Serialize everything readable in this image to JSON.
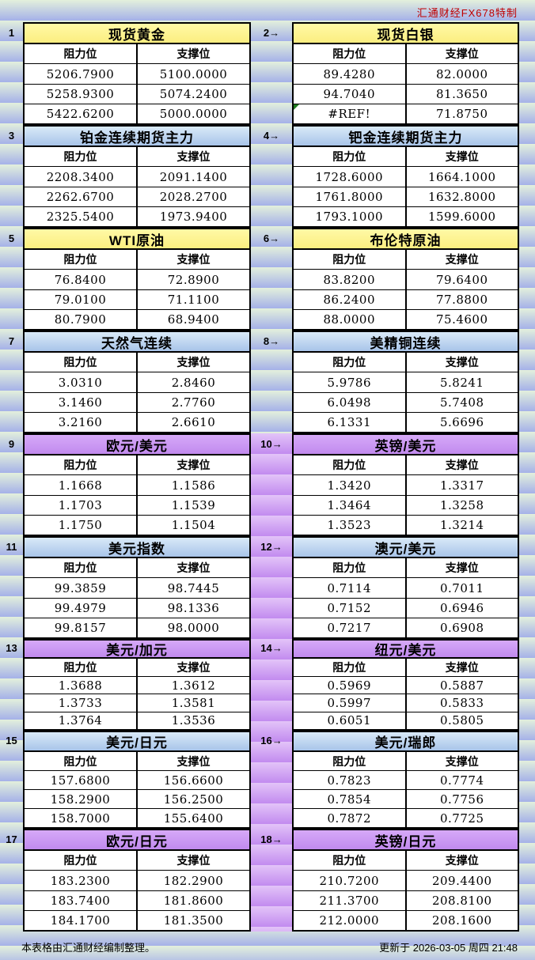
{
  "watermark": "汇通财经FX678特制",
  "footer": {
    "left": "本表格由汇通财经编制整理。",
    "right": "更新于 2026-03-05 周四 21:48"
  },
  "column_headers": {
    "resistance": "阻力位",
    "support": "支撑位"
  },
  "colors": {
    "watermark_red": "#C00000",
    "yellow_header": "#FBEE80",
    "blue_header": "#A8C4E9",
    "purple_header": "#C18AEE",
    "band_top": "#E3F0DC",
    "band_bottom": "#A5B1E8",
    "purple_band_top": "#E3C4F8",
    "purple_band_bottom": "#C28BEF",
    "error_triangle_green": "#1F7A1F"
  },
  "tables": [
    {
      "num": "1",
      "title": "现货黄金",
      "theme": "yellow",
      "rows": [
        [
          "5206.7900",
          "5100.0000"
        ],
        [
          "5258.9300",
          "5074.2400"
        ],
        [
          "5422.6200",
          "5000.0000"
        ]
      ]
    },
    {
      "num": "2→",
      "title": "现货白银",
      "theme": "yellow",
      "rows": [
        [
          "89.4280",
          "82.0000"
        ],
        [
          "94.7040",
          "81.3650"
        ],
        [
          "#REF!",
          "71.8750"
        ]
      ]
    },
    {
      "num": "3",
      "title": "铂金连续期货主力",
      "theme": "blue",
      "rows": [
        [
          "2208.3400",
          "2091.1400"
        ],
        [
          "2262.6700",
          "2028.2700"
        ],
        [
          "2325.5400",
          "1973.9400"
        ]
      ]
    },
    {
      "num": "4→",
      "title": "钯金连续期货主力",
      "theme": "blue",
      "rows": [
        [
          "1728.6000",
          "1664.1000"
        ],
        [
          "1761.8000",
          "1632.8000"
        ],
        [
          "1793.1000",
          "1599.6000"
        ]
      ]
    },
    {
      "num": "5",
      "title": "WTI原油",
      "theme": "yellow",
      "rows": [
        [
          "76.8400",
          "72.8900"
        ],
        [
          "79.0100",
          "71.1100"
        ],
        [
          "80.7900",
          "68.9400"
        ]
      ]
    },
    {
      "num": "6→",
      "title": "布伦特原油",
      "theme": "yellow",
      "rows": [
        [
          "83.8200",
          "79.6400"
        ],
        [
          "86.2400",
          "77.8800"
        ],
        [
          "88.0000",
          "75.4600"
        ]
      ]
    },
    {
      "num": "7",
      "title": "天然气连续",
      "theme": "blue",
      "rows": [
        [
          "3.0310",
          "2.8460"
        ],
        [
          "3.1460",
          "2.7760"
        ],
        [
          "3.2160",
          "2.6610"
        ]
      ]
    },
    {
      "num": "8→",
      "title": "美精铜连续",
      "theme": "blue",
      "rows": [
        [
          "5.9786",
          "5.8241"
        ],
        [
          "6.0498",
          "5.7408"
        ],
        [
          "6.1331",
          "5.6696"
        ]
      ]
    },
    {
      "num": "9",
      "title": "欧元/美元",
      "theme": "purple",
      "rows": [
        [
          "1.1668",
          "1.1586"
        ],
        [
          "1.1703",
          "1.1539"
        ],
        [
          "1.1750",
          "1.1504"
        ]
      ]
    },
    {
      "num": "10→",
      "title": "英镑/美元",
      "theme": "purple",
      "rows": [
        [
          "1.3420",
          "1.3317"
        ],
        [
          "1.3464",
          "1.3258"
        ],
        [
          "1.3523",
          "1.3214"
        ]
      ]
    },
    {
      "num": "11",
      "title": "美元指数",
      "theme": "blue",
      "rows": [
        [
          "99.3859",
          "98.7445"
        ],
        [
          "99.4979",
          "98.1336"
        ],
        [
          "99.8157",
          "98.0000"
        ]
      ]
    },
    {
      "num": "12→",
      "title": "澳元/美元",
      "theme": "blue",
      "rows": [
        [
          "0.7114",
          "0.7011"
        ],
        [
          "0.7152",
          "0.6946"
        ],
        [
          "0.7217",
          "0.6908"
        ]
      ]
    },
    {
      "num": "13",
      "title": "美元/加元",
      "theme": "purple",
      "rows": [
        [
          "1.3688",
          "1.3612"
        ],
        [
          "1.3733",
          "1.3581"
        ],
        [
          "1.3764",
          "1.3536"
        ]
      ]
    },
    {
      "num": "14→",
      "title": "纽元/美元",
      "theme": "purple",
      "rows": [
        [
          "0.5969",
          "0.5887"
        ],
        [
          "0.5997",
          "0.5833"
        ],
        [
          "0.6051",
          "0.5805"
        ]
      ]
    },
    {
      "num": "15",
      "title": "美元/日元",
      "theme": "blue",
      "rows": [
        [
          "157.6800",
          "156.6600"
        ],
        [
          "158.2900",
          "156.2500"
        ],
        [
          "158.7000",
          "155.6400"
        ]
      ]
    },
    {
      "num": "16→",
      "title": "美元/瑞郎",
      "theme": "blue",
      "rows": [
        [
          "0.7823",
          "0.7774"
        ],
        [
          "0.7854",
          "0.7756"
        ],
        [
          "0.7872",
          "0.7725"
        ]
      ]
    },
    {
      "num": "17",
      "title": "欧元/日元",
      "theme": "purple",
      "rows": [
        [
          "183.2300",
          "182.2900"
        ],
        [
          "183.7400",
          "181.8600"
        ],
        [
          "184.1700",
          "181.3500"
        ]
      ]
    },
    {
      "num": "18→",
      "title": "英镑/日元",
      "theme": "purple",
      "rows": [
        [
          "210.7200",
          "209.4400"
        ],
        [
          "211.3700",
          "208.8100"
        ],
        [
          "212.0000",
          "208.1600"
        ]
      ]
    }
  ]
}
